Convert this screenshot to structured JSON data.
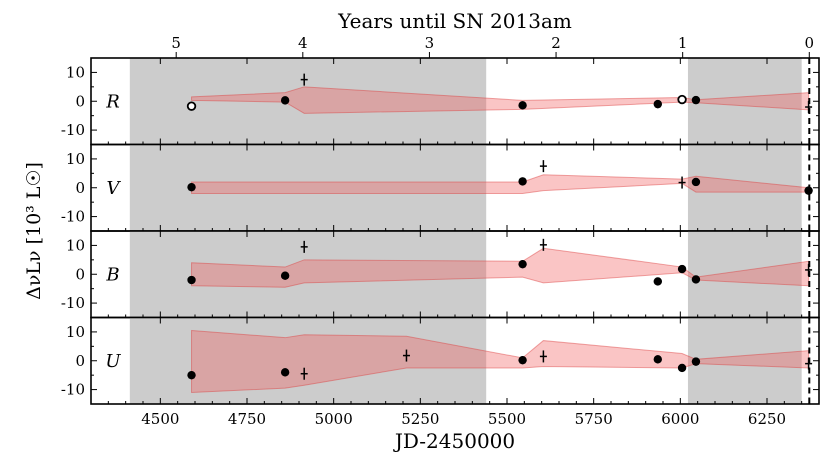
{
  "chart_data": {
    "type": "scatter",
    "xlabel": "JD-2450000",
    "ylabel": "ΔνLν [10³ L☉]",
    "top_axis_label": "Years until SN 2013am",
    "xlim": [
      4300,
      6400
    ],
    "ylim": [
      -15,
      15
    ],
    "x_ticks": [
      "4500",
      "4750",
      "5000",
      "5250",
      "5500",
      "5750",
      "6000",
      "6250"
    ],
    "y_ticks": [
      "10",
      "0",
      "-10"
    ],
    "top_ticks": [
      "5",
      "4",
      "3",
      "2",
      "1",
      "0"
    ],
    "sn_jd": 6372,
    "shaded_regions": [
      [
        4412,
        5440
      ],
      [
        6022,
        6350
      ]
    ],
    "panels": [
      {
        "band": "R",
        "envelope_x": [
          4590,
          4860,
          4915,
          5545,
          6005,
          6045,
          6370
        ],
        "envelope_lo": [
          0.3,
          -0.3,
          -4.2,
          -2.8,
          -0.3,
          -0.5,
          -3.0
        ],
        "envelope_hi": [
          1.5,
          3.0,
          5.0,
          0.3,
          1.3,
          0.5,
          3.0
        ],
        "detections": [
          [
            4590,
            -1.7
          ],
          [
            4860,
            0.3
          ],
          [
            5545,
            -1.4
          ],
          [
            5935,
            -1.0
          ],
          [
            6045,
            0.4
          ]
        ],
        "open_points": [
          [
            4590,
            -1.7
          ],
          [
            6005,
            0.6
          ]
        ],
        "upper_limits": [
          [
            4915,
            7.5
          ],
          [
            6370,
            -2.0
          ]
        ]
      },
      {
        "band": "V",
        "envelope_x": [
          4590,
          5545,
          5605,
          6005,
          6045,
          6370
        ],
        "envelope_lo": [
          -2.0,
          -2.0,
          -1.0,
          1.5,
          -1.5,
          -1.5
        ],
        "envelope_hi": [
          2.0,
          2.0,
          4.5,
          3.0,
          4.0,
          0.0
        ],
        "detections": [
          [
            4590,
            0.2
          ],
          [
            5545,
            2.2
          ],
          [
            6045,
            2.0
          ],
          [
            6370,
            -1.0
          ]
        ],
        "open_points": [],
        "upper_limits": [
          [
            5605,
            7.5
          ],
          [
            6005,
            1.8
          ]
        ]
      },
      {
        "band": "B",
        "envelope_x": [
          4590,
          4860,
          4915,
          5545,
          5605,
          6005,
          6045,
          6370
        ],
        "envelope_lo": [
          -4.0,
          -4.5,
          -3.0,
          -1.0,
          -3.0,
          0.5,
          -2.0,
          -4.0
        ],
        "envelope_hi": [
          4.0,
          2.5,
          5.0,
          4.5,
          9.0,
          2.5,
          -1.0,
          4.5
        ],
        "detections": [
          [
            4590,
            -2.0
          ],
          [
            4860,
            -0.5
          ],
          [
            5545,
            3.5
          ],
          [
            5935,
            -2.5
          ],
          [
            6005,
            1.8
          ],
          [
            6045,
            -1.8
          ]
        ],
        "open_points": [],
        "upper_limits": [
          [
            4915,
            9.5
          ],
          [
            5605,
            10.2
          ],
          [
            6370,
            1.5
          ]
        ]
      },
      {
        "band": "U",
        "envelope_x": [
          4590,
          4860,
          4915,
          5210,
          5545,
          5605,
          6005,
          6045,
          6370
        ],
        "envelope_lo": [
          -11.0,
          -9.5,
          -8.5,
          -2.5,
          -2.5,
          -2.0,
          -2.5,
          -1.0,
          -2.5
        ],
        "envelope_hi": [
          10.5,
          8.0,
          9.0,
          8.5,
          1.0,
          7.0,
          2.5,
          0.5,
          3.5
        ],
        "detections": [
          [
            4590,
            -5.0
          ],
          [
            4860,
            -4.0
          ],
          [
            5545,
            0.2
          ],
          [
            5935,
            0.5
          ],
          [
            6005,
            -2.5
          ],
          [
            6045,
            -0.3
          ]
        ],
        "open_points": [],
        "upper_limits": [
          [
            4915,
            -4.5
          ],
          [
            5210,
            1.8
          ],
          [
            5605,
            1.5
          ],
          [
            6370,
            -1.0
          ]
        ]
      }
    ]
  }
}
